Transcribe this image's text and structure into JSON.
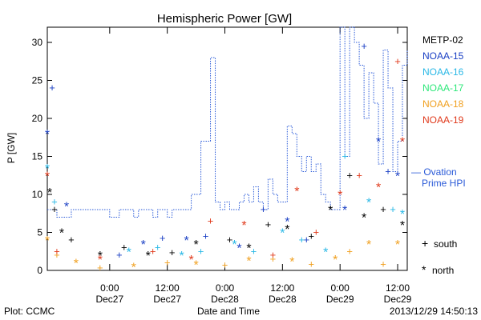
{
  "chart_data": {
    "type": "scatter",
    "title": "Hemispheric Power [GW]",
    "xlabel": "Date and Time",
    "ylabel": "P [GW]",
    "ylim": [
      0,
      32
    ],
    "x_unit": "datetime (2013-12-26 12:00 to 2013-12-29 14:00)",
    "xlim": [
      "2013-12-26T11:00",
      "2013-12-29T14:00"
    ],
    "yticks": [
      0,
      5,
      10,
      15,
      20,
      25,
      30
    ],
    "xticks": [
      {
        "x": "2013-12-27T00:00",
        "top": "0:00",
        "bottom": "Dec27"
      },
      {
        "x": "2013-12-27T12:00",
        "top": "12:00",
        "bottom": "Dec27"
      },
      {
        "x": "2013-12-28T00:00",
        "top": "0:00",
        "bottom": "Dec28"
      },
      {
        "x": "2013-12-28T12:00",
        "top": "12:00",
        "bottom": "Dec28"
      },
      {
        "x": "2013-12-29T00:00",
        "top": "0:00",
        "bottom": "Dec29"
      },
      {
        "x": "2013-12-29T12:00",
        "top": "12:00",
        "bottom": "Dec29"
      }
    ],
    "legend": [
      {
        "name": "METP-02",
        "color": "#000000"
      },
      {
        "name": "NOAA-15",
        "color": "#1a3fc4"
      },
      {
        "name": "NOAA-16",
        "color": "#2ab8e6"
      },
      {
        "name": "NOAA-17",
        "color": "#2ee87a"
      },
      {
        "name": "NOAA-18",
        "color": "#f0a020"
      },
      {
        "name": "NOAA-19",
        "color": "#e03a1c"
      }
    ],
    "ovation": {
      "label_line1": "— Ovation",
      "label_line2": "Prime HPI",
      "color": "#2a5ad8",
      "steps": [
        [
          "2013-12-26T11:00",
          8
        ],
        [
          "2013-12-26T13:00",
          7
        ],
        [
          "2013-12-26T16:00",
          8
        ],
        [
          "2013-12-27T00:00",
          7
        ],
        [
          "2013-12-27T02:00",
          8
        ],
        [
          "2013-12-27T05:00",
          7
        ],
        [
          "2013-12-27T06:00",
          8
        ],
        [
          "2013-12-27T09:00",
          7
        ],
        [
          "2013-12-27T10:00",
          8
        ],
        [
          "2013-12-27T12:00",
          7
        ],
        [
          "2013-12-27T13:00",
          8
        ],
        [
          "2013-12-27T16:00",
          8
        ],
        [
          "2013-12-27T17:00",
          10
        ],
        [
          "2013-12-27T19:00",
          17
        ],
        [
          "2013-12-27T21:00",
          28
        ],
        [
          "2013-12-27T22:00",
          9
        ],
        [
          "2013-12-27T23:00",
          8
        ],
        [
          "2013-12-28T00:00",
          9
        ],
        [
          "2013-12-28T01:00",
          8
        ],
        [
          "2013-12-28T03:00",
          9
        ],
        [
          "2013-12-28T04:00",
          10
        ],
        [
          "2013-12-28T05:00",
          9
        ],
        [
          "2013-12-28T06:00",
          11
        ],
        [
          "2013-12-28T07:00",
          9
        ],
        [
          "2013-12-28T08:00",
          8
        ],
        [
          "2013-12-28T09:00",
          12
        ],
        [
          "2013-12-28T10:00",
          10
        ],
        [
          "2013-12-28T11:00",
          9
        ],
        [
          "2013-12-28T13:00",
          19
        ],
        [
          "2013-12-28T14:00",
          18
        ],
        [
          "2013-12-28T15:00",
          15
        ],
        [
          "2013-12-28T16:00",
          13
        ],
        [
          "2013-12-28T17:00",
          15
        ],
        [
          "2013-12-28T18:00",
          13
        ],
        [
          "2013-12-28T19:00",
          14
        ],
        [
          "2013-12-28T20:00",
          10
        ],
        [
          "2013-12-28T21:00",
          9
        ],
        [
          "2013-12-28T22:00",
          8
        ],
        [
          "2013-12-29T00:00",
          32
        ],
        [
          "2013-12-29T01:00",
          15
        ],
        [
          "2013-12-29T02:00",
          32
        ],
        [
          "2013-12-29T03:00",
          30
        ],
        [
          "2013-12-29T04:00",
          27
        ],
        [
          "2013-12-29T05:00",
          20
        ],
        [
          "2013-12-29T06:00",
          26
        ],
        [
          "2013-12-29T07:00",
          22
        ],
        [
          "2013-12-29T08:00",
          14
        ],
        [
          "2013-12-29T09:00",
          29
        ],
        [
          "2013-12-29T10:00",
          24
        ],
        [
          "2013-12-29T11:00",
          13
        ],
        [
          "2013-12-29T12:00",
          17
        ],
        [
          "2013-12-29T13:00",
          27
        ],
        [
          "2013-12-29T14:00",
          29
        ]
      ]
    },
    "series": [
      {
        "name": "METP-02",
        "color": "#000000",
        "points": [
          [
            "2013-12-26T11:30",
            10.3
          ],
          [
            "2013-12-26T12:30",
            8
          ],
          [
            "2013-12-26T14:00",
            5
          ],
          [
            "2013-12-26T16:00",
            4
          ],
          [
            "2013-12-26T22:00",
            2
          ],
          [
            "2013-12-27T03:00",
            3
          ],
          [
            "2013-12-27T08:00",
            2
          ],
          [
            "2013-12-27T13:00",
            2.3
          ],
          [
            "2013-12-27T18:00",
            3.5
          ],
          [
            "2013-12-28T01:00",
            4
          ],
          [
            "2013-12-28T05:00",
            3
          ],
          [
            "2013-12-28T09:00",
            6
          ],
          [
            "2013-12-28T13:00",
            5.5
          ],
          [
            "2013-12-28T18:00",
            4.5
          ],
          [
            "2013-12-28T22:00",
            8
          ],
          [
            "2013-12-29T02:00",
            12.5
          ],
          [
            "2013-12-29T05:00",
            7
          ],
          [
            "2013-12-29T09:00",
            8
          ],
          [
            "2013-12-29T13:00",
            6
          ]
        ]
      },
      {
        "name": "NOAA-15",
        "color": "#1a3fc4",
        "points": [
          [
            "2013-12-26T11:00",
            18
          ],
          [
            "2013-12-26T12:00",
            24
          ],
          [
            "2013-12-26T15:00",
            8.5
          ],
          [
            "2013-12-27T02:00",
            2
          ],
          [
            "2013-12-27T07:00",
            3.5
          ],
          [
            "2013-12-27T11:00",
            4.2
          ],
          [
            "2013-12-27T16:00",
            4
          ],
          [
            "2013-12-27T20:00",
            4.5
          ],
          [
            "2013-12-28T03:00",
            3
          ],
          [
            "2013-12-28T08:00",
            8
          ],
          [
            "2013-12-28T13:00",
            6.5
          ],
          [
            "2013-12-28T17:00",
            4
          ],
          [
            "2013-12-29T01:00",
            8
          ],
          [
            "2013-12-29T05:00",
            29.5
          ],
          [
            "2013-12-29T08:00",
            17
          ],
          [
            "2013-12-29T10:00",
            13
          ],
          [
            "2013-12-29T12:00",
            12.5
          ]
        ]
      },
      {
        "name": "NOAA-16",
        "color": "#2ab8e6",
        "points": [
          [
            "2013-12-26T11:00",
            13.5
          ],
          [
            "2013-12-26T12:30",
            9
          ],
          [
            "2013-12-27T04:00",
            2.5
          ],
          [
            "2013-12-27T10:00",
            3
          ],
          [
            "2013-12-27T15:00",
            2
          ],
          [
            "2013-12-27T19:00",
            2.5
          ],
          [
            "2013-12-28T02:00",
            3.5
          ],
          [
            "2013-12-28T06:00",
            2.5
          ],
          [
            "2013-12-28T12:00",
            5
          ],
          [
            "2013-12-28T16:00",
            4
          ],
          [
            "2013-12-28T21:00",
            2.5
          ],
          [
            "2013-12-29T01:00",
            15
          ],
          [
            "2013-12-29T06:00",
            9
          ],
          [
            "2013-12-29T11:00",
            8
          ],
          [
            "2013-12-29T13:00",
            7.5
          ]
        ]
      },
      {
        "name": "NOAA-18",
        "color": "#f0a020",
        "points": [
          [
            "2013-12-26T11:00",
            4
          ],
          [
            "2013-12-26T13:00",
            2
          ],
          [
            "2013-12-26T17:00",
            1
          ],
          [
            "2013-12-26T22:00",
            0.3
          ],
          [
            "2013-12-27T05:00",
            0.5
          ],
          [
            "2013-12-27T12:00",
            1
          ],
          [
            "2013-12-27T18:00",
            0.8
          ],
          [
            "2013-12-28T00:00",
            0.7
          ],
          [
            "2013-12-28T05:00",
            1.3
          ],
          [
            "2013-12-28T10:00",
            1.5
          ],
          [
            "2013-12-28T14:00",
            1.2
          ],
          [
            "2013-12-28T18:00",
            0.8
          ],
          [
            "2013-12-28T23:00",
            1.5
          ],
          [
            "2013-12-29T02:00",
            2.5
          ],
          [
            "2013-12-29T06:00",
            3.5
          ],
          [
            "2013-12-29T09:00",
            0.8
          ],
          [
            "2013-12-29T12:00",
            3.5
          ]
        ]
      },
      {
        "name": "NOAA-19",
        "color": "#e03a1c",
        "points": [
          [
            "2013-12-26T11:00",
            12.5
          ],
          [
            "2013-12-26T13:00",
            2.5
          ],
          [
            "2013-12-26T22:00",
            1.5
          ],
          [
            "2013-12-27T09:00",
            2.5
          ],
          [
            "2013-12-27T17:00",
            1.5
          ],
          [
            "2013-12-27T21:00",
            6.5
          ],
          [
            "2013-12-28T04:00",
            6
          ],
          [
            "2013-12-28T10:00",
            2
          ],
          [
            "2013-12-28T15:00",
            10.5
          ],
          [
            "2013-12-28T19:00",
            5
          ],
          [
            "2013-12-29T00:00",
            10
          ],
          [
            "2013-12-29T04:00",
            12.5
          ],
          [
            "2013-12-29T08:00",
            11
          ],
          [
            "2013-12-29T12:00",
            27.5
          ],
          [
            "2013-12-29T13:00",
            17
          ]
        ]
      }
    ],
    "marker_key": {
      "south": "south",
      "north": "north"
    }
  },
  "footer": {
    "left": "Plot: CCMC",
    "center": "Date and Time",
    "right": "2013/12/29 14:50:13"
  }
}
